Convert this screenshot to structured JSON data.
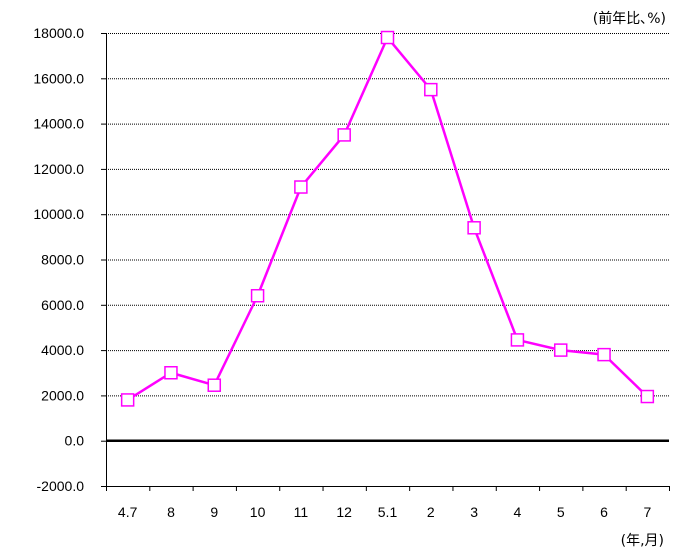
{
  "chart_data": {
    "type": "line",
    "y_unit_label": "(前年比､%)",
    "x_unit_label": "(年,月)",
    "categories": [
      "4.7",
      "8",
      "9",
      "10",
      "11",
      "12",
      "5.1",
      "2",
      "3",
      "4",
      "5",
      "6",
      "7"
    ],
    "series": [
      {
        "values": [
          1800,
          3000,
          2450,
          6400,
          11200,
          13500,
          17800,
          15500,
          9400,
          4450,
          4000,
          3800,
          1950
        ],
        "color": "#ff00ff",
        "marker": "square-open"
      }
    ],
    "y_ticks": [
      "18000.0",
      "16000.0",
      "14000.0",
      "12000.0",
      "10000.0",
      "8000.0",
      "6000.0",
      "4000.0",
      "2000.0",
      "0.0",
      "-2000.0"
    ],
    "ylim": [
      -2000,
      18000
    ],
    "y_tick_step": 2000,
    "grid": "horizontal dotted",
    "zero_line": "bold",
    "legend": "none"
  }
}
